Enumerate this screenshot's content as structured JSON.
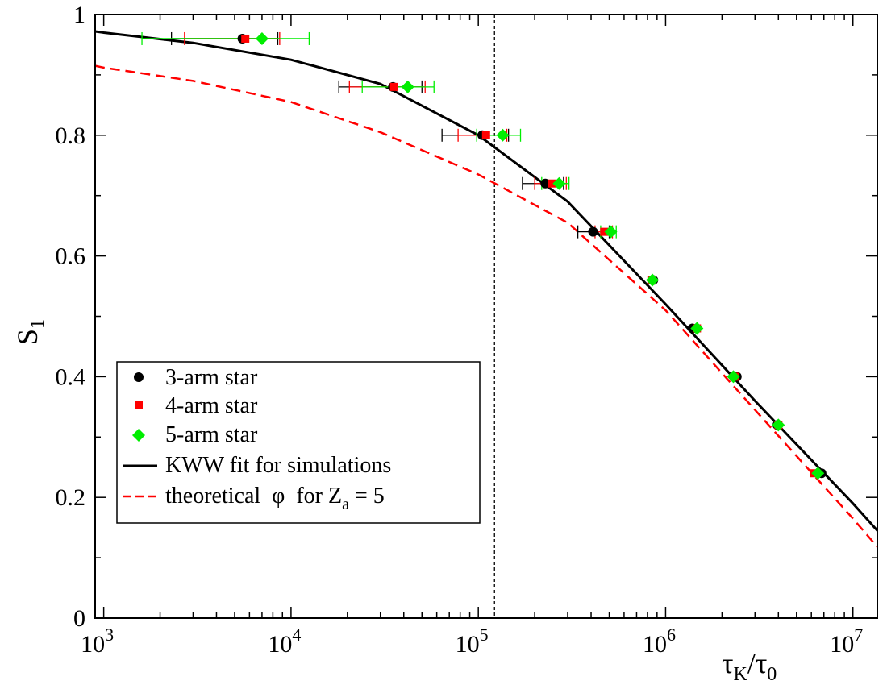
{
  "chart_data": {
    "type": "scatter",
    "title": "",
    "xscale": "log",
    "xlim": [
      900,
      13500000
    ],
    "ylim": [
      0,
      1
    ],
    "x_ticks": [
      {
        "value": 1000,
        "base": "10",
        "exp": "3"
      },
      {
        "value": 10000,
        "base": "10",
        "exp": "4"
      },
      {
        "value": 100000,
        "base": "10",
        "exp": "5"
      },
      {
        "value": 1000000,
        "base": "10",
        "exp": "6"
      },
      {
        "value": 10000000,
        "base": "10",
        "exp": "7"
      }
    ],
    "y_ticks": [
      {
        "value": 0,
        "label": "0"
      },
      {
        "value": 0.2,
        "label": "0.2"
      },
      {
        "value": 0.4,
        "label": "0.4"
      },
      {
        "value": 0.6,
        "label": "0.6"
      },
      {
        "value": 0.8,
        "label": "0.8"
      },
      {
        "value": 1,
        "label": "1"
      }
    ],
    "xlabel": {
      "tau": "τ",
      "sub1": "K",
      "slash": "/",
      "tau2": "τ",
      "sub2": "0"
    },
    "ylabel": {
      "main": "S",
      "sub": "1"
    },
    "vertical_line_x": 122000,
    "series": [
      {
        "name": "3-arm star",
        "color": "#000000",
        "marker": "circle",
        "points": [
          {
            "x": 5500,
            "y": 0.96,
            "xerr": [
              2300,
              8500
            ]
          },
          {
            "x": 35000,
            "y": 0.88,
            "xerr": [
              18000,
              50000
            ]
          },
          {
            "x": 105000,
            "y": 0.8,
            "xerr": [
              64000,
              145000
            ]
          },
          {
            "x": 228000,
            "y": 0.72,
            "xerr": [
              172000,
              285000
            ]
          },
          {
            "x": 410000,
            "y": 0.64,
            "xerr": [
              340000,
              500000
            ]
          },
          {
            "x": 860000,
            "y": 0.56,
            "xerr": null
          },
          {
            "x": 1390000,
            "y": 0.48,
            "xerr": null
          },
          {
            "x": 2400000,
            "y": 0.4,
            "xerr": null
          },
          {
            "x": 3950000,
            "y": 0.32,
            "xerr": null
          },
          {
            "x": 6800000,
            "y": 0.24,
            "xerr": null
          }
        ]
      },
      {
        "name": "4-arm star",
        "color": "#ff0000",
        "marker": "square",
        "points": [
          {
            "x": 5700,
            "y": 0.96,
            "xerr": [
              2700,
              8700
            ]
          },
          {
            "x": 35500,
            "y": 0.88,
            "xerr": [
              20500,
              52000
            ]
          },
          {
            "x": 110000,
            "y": 0.8,
            "xerr": [
              78000,
              142000
            ]
          },
          {
            "x": 248000,
            "y": 0.72,
            "xerr": [
              200000,
              295000
            ]
          },
          {
            "x": 470000,
            "y": 0.64,
            "xerr": [
              420000,
              520000
            ]
          },
          {
            "x": 840000,
            "y": 0.56,
            "xerr": null
          },
          {
            "x": 1470000,
            "y": 0.48,
            "xerr": null
          },
          {
            "x": 2350000,
            "y": 0.4,
            "xerr": null
          },
          {
            "x": 4000000,
            "y": 0.32,
            "xerr": null
          },
          {
            "x": 6200000,
            "y": 0.24,
            "xerr": null
          }
        ]
      },
      {
        "name": "5-arm star",
        "color": "#00ee00",
        "marker": "diamond",
        "points": [
          {
            "x": 7000,
            "y": 0.96,
            "xerr": [
              1600,
              12500
            ]
          },
          {
            "x": 42000,
            "y": 0.88,
            "xerr": [
              24000,
              58000
            ]
          },
          {
            "x": 135000,
            "y": 0.8,
            "xerr": [
              98000,
              168000
            ]
          },
          {
            "x": 270000,
            "y": 0.72,
            "xerr": [
              218000,
              305000
            ]
          },
          {
            "x": 510000,
            "y": 0.64,
            "xerr": [
              450000,
              545000
            ]
          },
          {
            "x": 850000,
            "y": 0.56,
            "xerr": null
          },
          {
            "x": 1470000,
            "y": 0.48,
            "xerr": null
          },
          {
            "x": 2300000,
            "y": 0.4,
            "xerr": null
          },
          {
            "x": 4000000,
            "y": 0.32,
            "xerr": null
          },
          {
            "x": 6500000,
            "y": 0.24,
            "xerr": null
          }
        ]
      }
    ],
    "curves": [
      {
        "name": "KWW fit for simulations",
        "color": "#000000",
        "dash": "solid",
        "points": [
          [
            900,
            0.972
          ],
          [
            1000,
            0.97
          ],
          [
            3000,
            0.953
          ],
          [
            10000,
            0.925
          ],
          [
            30000,
            0.885
          ],
          [
            100000,
            0.8
          ],
          [
            300000,
            0.69
          ],
          [
            1000000,
            0.52
          ],
          [
            3000000,
            0.36
          ],
          [
            10000000,
            0.19
          ],
          [
            13500000,
            0.145
          ]
        ]
      },
      {
        "name": "theoretical φ for Za = 5",
        "color": "#ff0000",
        "dash": "dashed",
        "points": [
          [
            900,
            0.915
          ],
          [
            1000,
            0.912
          ],
          [
            3000,
            0.89
          ],
          [
            10000,
            0.855
          ],
          [
            30000,
            0.805
          ],
          [
            100000,
            0.735
          ],
          [
            300000,
            0.655
          ],
          [
            1000000,
            0.51
          ],
          [
            3000000,
            0.345
          ],
          [
            10000000,
            0.165
          ],
          [
            13500000,
            0.118
          ]
        ]
      }
    ],
    "legend": {
      "position": "lower-left",
      "entries": [
        {
          "label": "3-arm star",
          "kind": "marker",
          "marker": "circle",
          "color": "#000000"
        },
        {
          "label": "4-arm star",
          "kind": "marker",
          "marker": "square",
          "color": "#ff0000"
        },
        {
          "label": "5-arm star",
          "kind": "marker",
          "marker": "diamond",
          "color": "#00ee00"
        },
        {
          "label": "KWW fit for simulations",
          "kind": "line",
          "dash": "solid",
          "color": "#000000"
        },
        {
          "label": "theoretical  φ  for Z",
          "sub": "a",
          "tail": " = 5",
          "kind": "line",
          "dash": "dashed",
          "color": "#ff0000"
        }
      ]
    }
  }
}
